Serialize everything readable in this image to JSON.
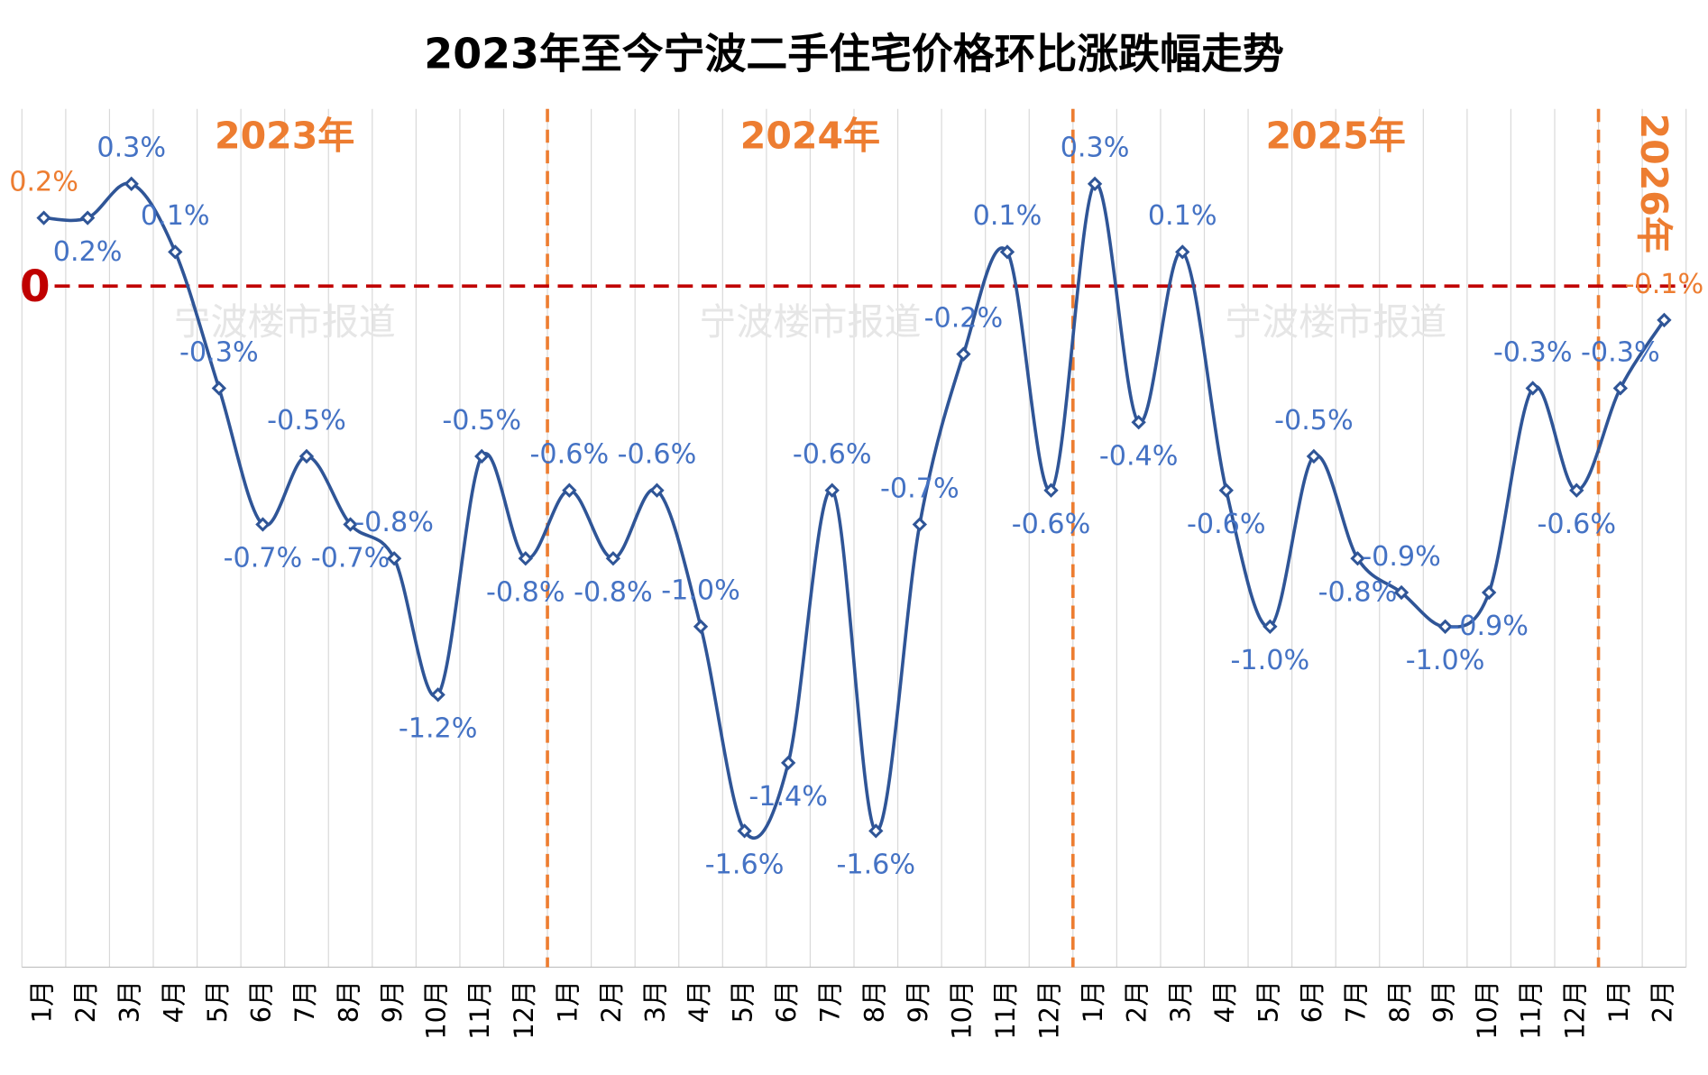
{
  "chart_data": {
    "type": "line",
    "title": "2023年至今宁波二手住宅价格环比涨跌幅走势",
    "categories": [
      "1月",
      "2月",
      "3月",
      "4月",
      "5月",
      "6月",
      "7月",
      "8月",
      "9月",
      "10月",
      "11月",
      "12月",
      "1月",
      "2月",
      "3月",
      "4月",
      "5月",
      "6月",
      "7月",
      "8月",
      "9月",
      "10月",
      "11月",
      "12月",
      "1月",
      "2月",
      "3月",
      "4月",
      "5月",
      "6月",
      "7月",
      "8月",
      "9月",
      "10月",
      "11月",
      "12月",
      "1月",
      "2月"
    ],
    "series": [
      {
        "name": "环比涨跌幅",
        "color": "#2f5597",
        "values": [
          0.2,
          0.2,
          0.3,
          0.1,
          -0.3,
          -0.7,
          -0.5,
          -0.7,
          -0.8,
          -1.2,
          -0.5,
          -0.8,
          -0.6,
          -0.8,
          -0.6,
          -1.0,
          -1.6,
          -1.4,
          -0.6,
          -1.6,
          -0.7,
          -0.2,
          0.1,
          -0.6,
          0.3,
          -0.4,
          0.1,
          -0.6,
          -1.0,
          -0.5,
          -0.8,
          -0.9,
          -1.0,
          -0.9,
          -0.3,
          -0.6,
          -0.3,
          -0.1
        ],
        "value_labels": [
          "0.2%",
          "0.2%",
          "0.3%",
          "0.1%",
          "-0.3%",
          "-0.7%",
          "-0.5%",
          "-0.7%",
          "-0.8%",
          "-1.2%",
          "-0.5%",
          "-0.8%",
          "-0.6%",
          "-0.8%",
          "-0.6%",
          "-1.0%",
          "-1.6%",
          "-1.4%",
          "-0.6%",
          "-1.6%",
          "-0.7%",
          "-0.2%",
          "0.1%",
          "-0.6%",
          "0.3%",
          "-0.4%",
          "0.1%",
          "-0.6%",
          "-1.0%",
          "-0.5%",
          "-0.8%",
          "-0.9%",
          "-1.0%",
          "-0.9%",
          "-0.3%",
          "-0.6%",
          "-0.3%",
          "-0.1%"
        ]
      }
    ],
    "highlight_color": "#ed7d31",
    "highlight_points": [
      0,
      37
    ],
    "years": [
      {
        "label": "2023年",
        "start": 0
      },
      {
        "label": "2024年",
        "start": 12
      },
      {
        "label": "2025年",
        "start": 24
      },
      {
        "label": "2026年",
        "start": 36
      }
    ],
    "watermark": "宁波楼市报道",
    "ylim": [
      -2.0,
      0.52
    ],
    "yticks": [
      0
    ],
    "grid": true
  }
}
